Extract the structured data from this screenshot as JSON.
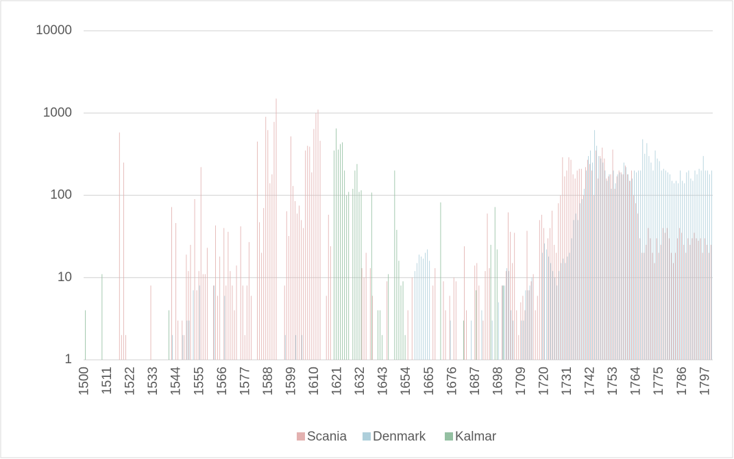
{
  "chart_data": {
    "type": "bar",
    "log_scale": true,
    "grid": true,
    "legend_position": "bottom",
    "categories": [
      "1500",
      null,
      null,
      null,
      null,
      null,
      null,
      null,
      null,
      null,
      null,
      "1511",
      null,
      null,
      null,
      null,
      null,
      null,
      null,
      null,
      null,
      null,
      "1522",
      null,
      null,
      null,
      null,
      null,
      null,
      null,
      null,
      null,
      null,
      "1533",
      null,
      null,
      null,
      null,
      null,
      null,
      null,
      null,
      null,
      null,
      "1544",
      null,
      null,
      null,
      null,
      null,
      null,
      null,
      null,
      null,
      null,
      "1555",
      null,
      null,
      null,
      null,
      null,
      null,
      null,
      null,
      null,
      null,
      "1566",
      null,
      null,
      null,
      null,
      null,
      null,
      null,
      null,
      null,
      null,
      "1577",
      null,
      null,
      null,
      null,
      null,
      null,
      null,
      null,
      null,
      null,
      "1588",
      null,
      null,
      null,
      null,
      null,
      null,
      null,
      null,
      null,
      null,
      "1599",
      null,
      null,
      null,
      null,
      null,
      null,
      null,
      null,
      null,
      null,
      "1610",
      null,
      null,
      null,
      null,
      null,
      null,
      null,
      null,
      null,
      null,
      "1621",
      null,
      null,
      null,
      null,
      null,
      null,
      null,
      null,
      null,
      null,
      "1632",
      null,
      null,
      null,
      null,
      null,
      null,
      null,
      null,
      null,
      null,
      "1643",
      null,
      null,
      null,
      null,
      null,
      null,
      null,
      null,
      null,
      null,
      "1654",
      null,
      null,
      null,
      null,
      null,
      null,
      null,
      null,
      null,
      null,
      "1665",
      null,
      null,
      null,
      null,
      null,
      null,
      null,
      null,
      null,
      null,
      "1676",
      null,
      null,
      null,
      null,
      null,
      null,
      null,
      null,
      null,
      null,
      "1687",
      null,
      null,
      null,
      null,
      null,
      null,
      null,
      null,
      null,
      null,
      "1698",
      null,
      null,
      null,
      null,
      null,
      null,
      null,
      null,
      null,
      null,
      "1709",
      null,
      null,
      null,
      null,
      null,
      null,
      null,
      null,
      null,
      null,
      "1720",
      null,
      null,
      null,
      null,
      null,
      null,
      null,
      null,
      null,
      null,
      "1731",
      null,
      null,
      null,
      null,
      null,
      null,
      null,
      null,
      null,
      null,
      "1742",
      null,
      null,
      null,
      null,
      null,
      null,
      null,
      null,
      null,
      null,
      "1753",
      null,
      null,
      null,
      null,
      null,
      null,
      null,
      null,
      null,
      null,
      "1764",
      null,
      null,
      null,
      null,
      null,
      null,
      null,
      null,
      null,
      null,
      "1775",
      null,
      null,
      null,
      null,
      null,
      null,
      null,
      null,
      null,
      null,
      "1786",
      null,
      null,
      null,
      null,
      null,
      null,
      null,
      null,
      null,
      null,
      "1797",
      null,
      null,
      null
    ],
    "ylim": [
      1,
      10000
    ],
    "yticks": [
      1,
      10,
      100,
      1000,
      10000
    ],
    "series": [
      {
        "name": "Scania",
        "color": "#e3b1b0",
        "values": [
          null,
          null,
          null,
          null,
          null,
          null,
          null,
          null,
          null,
          null,
          null,
          null,
          null,
          null,
          null,
          null,
          null,
          580,
          2,
          250,
          2,
          null,
          null,
          null,
          null,
          null,
          null,
          null,
          null,
          null,
          null,
          null,
          8,
          null,
          null,
          null,
          null,
          null,
          null,
          null,
          null,
          null,
          72,
          null,
          46,
          3,
          null,
          3,
          2,
          19,
          12,
          25,
          null,
          90,
          7,
          12,
          220,
          11,
          11,
          23,
          null,
          null,
          8,
          43,
          6,
          18,
          null,
          40,
          8,
          36,
          12,
          8,
          4,
          14,
          null,
          42,
          8,
          2,
          8,
          27,
          6,
          null,
          null,
          450,
          47,
          20,
          70,
          900,
          620,
          140,
          180,
          780,
          1500,
          null,
          null,
          null,
          8,
          64,
          32,
          520,
          130,
          85,
          60,
          75,
          50,
          40,
          350,
          400,
          390,
          190,
          640,
          1000,
          1100,
          460,
          null,
          null,
          6,
          58,
          24,
          null,
          null,
          null,
          null,
          null,
          null,
          null,
          null,
          null,
          null,
          null,
          null,
          null,
          null,
          13,
          10,
          20,
          null,
          13,
          6,
          null,
          null,
          null,
          null,
          null,
          null,
          9,
          null,
          null,
          null,
          null,
          null,
          null,
          null,
          null,
          null,
          4,
          null,
          10,
          null,
          null,
          null,
          null,
          null,
          null,
          null,
          null,
          null,
          8,
          13,
          null,
          null,
          null,
          9,
          4,
          null,
          6,
          null,
          10,
          9,
          null,
          null,
          null,
          24,
          4,
          null,
          null,
          null,
          14,
          15,
          8,
          null,
          3,
          12,
          60,
          13,
          null,
          null,
          null,
          null,
          null,
          8,
          null,
          12,
          62,
          36,
          15,
          35,
          4,
          2,
          5,
          6,
          4,
          37,
          7,
          9,
          11,
          4,
          6,
          50,
          58,
          40,
          null,
          30,
          40,
          65,
          25,
          20,
          80,
          100,
          290,
          170,
          200,
          290,
          270,
          180,
          160,
          200,
          210,
          210,
          100,
          220,
          270,
          240,
          200,
          100,
          350,
          160,
          300,
          380,
          280,
          160,
          170,
          180,
          360,
          120,
          170,
          200,
          190,
          180,
          230,
          180,
          150,
          200,
          100,
          80,
          60,
          30,
          20,
          20,
          25,
          40,
          30,
          20,
          15,
          30,
          20,
          25,
          40,
          35,
          40,
          30,
          20,
          15,
          20,
          30,
          40,
          35,
          25,
          20,
          30,
          25,
          30,
          35,
          30,
          28,
          30,
          20,
          30,
          25,
          20,
          25
        ]
      },
      {
        "name": "Denmark",
        "color": "#aecfdb",
        "values": [
          null,
          null,
          null,
          null,
          null,
          null,
          null,
          null,
          null,
          null,
          null,
          null,
          null,
          null,
          null,
          null,
          null,
          null,
          null,
          null,
          null,
          null,
          null,
          null,
          null,
          null,
          null,
          null,
          null,
          null,
          null,
          null,
          null,
          null,
          null,
          null,
          null,
          null,
          null,
          null,
          null,
          null,
          2,
          null,
          null,
          null,
          null,
          2,
          null,
          3,
          3,
          null,
          7,
          null,
          null,
          8,
          null,
          null,
          null,
          null,
          null,
          null,
          8,
          null,
          null,
          null,
          null,
          6,
          null,
          null,
          null,
          null,
          null,
          null,
          null,
          null,
          null,
          null,
          null,
          null,
          null,
          null,
          null,
          null,
          null,
          null,
          null,
          null,
          null,
          null,
          null,
          null,
          null,
          null,
          null,
          null,
          2,
          null,
          null,
          null,
          null,
          2,
          null,
          null,
          2,
          null,
          null,
          null,
          null,
          null,
          null,
          null,
          null,
          null,
          null,
          null,
          null,
          null,
          null,
          null,
          null,
          null,
          null,
          null,
          null,
          null,
          null,
          null,
          null,
          null,
          null,
          null,
          null,
          null,
          null,
          null,
          null,
          null,
          null,
          null,
          null,
          null,
          null,
          null,
          null,
          null,
          null,
          null,
          null,
          null,
          null,
          null,
          null,
          null,
          null,
          null,
          null,
          null,
          12,
          15,
          19,
          18,
          17,
          20,
          22,
          16,
          null,
          null,
          null,
          null,
          null,
          null,
          null,
          null,
          null,
          3,
          null,
          null,
          null,
          null,
          null,
          null,
          null,
          null,
          null,
          3,
          null,
          null,
          null,
          null,
          4,
          null,
          null,
          null,
          null,
          3,
          null,
          null,
          5,
          null,
          8,
          8,
          13,
          12,
          4,
          3,
          null,
          null,
          null,
          3,
          3,
          7,
          7,
          8,
          10,
          null,
          null,
          null,
          null,
          20,
          26,
          22,
          18,
          15,
          12,
          10,
          8,
          12,
          15,
          17,
          15,
          18,
          20,
          30,
          50,
          60,
          50,
          80,
          90,
          120,
          200,
          300,
          350,
          250,
          620,
          400,
          300,
          280,
          250,
          200,
          150,
          180,
          120,
          200,
          140,
          180,
          190,
          180,
          250,
          220,
          180,
          150,
          160,
          200,
          190,
          200,
          200,
          480,
          320,
          430,
          300,
          250,
          200,
          350,
          280,
          260,
          200,
          210,
          200,
          190,
          180,
          150,
          140,
          150,
          140,
          200,
          150,
          140,
          190,
          200,
          160,
          150,
          200,
          180,
          210,
          200,
          300,
          200,
          200,
          180,
          200
        ]
      },
      {
        "name": "Kalmar",
        "color": "#94c0a2",
        "values": [
          4,
          null,
          null,
          null,
          null,
          null,
          null,
          null,
          11,
          null,
          null,
          null,
          null,
          null,
          null,
          null,
          null,
          null,
          null,
          null,
          null,
          null,
          null,
          null,
          null,
          null,
          null,
          null,
          null,
          null,
          null,
          null,
          null,
          null,
          null,
          null,
          null,
          null,
          null,
          null,
          4,
          null,
          null,
          null,
          null,
          null,
          null,
          null,
          null,
          null,
          null,
          null,
          null,
          null,
          null,
          null,
          null,
          null,
          null,
          null,
          null,
          null,
          null,
          null,
          null,
          null,
          null,
          null,
          null,
          null,
          null,
          null,
          null,
          null,
          null,
          null,
          null,
          null,
          null,
          null,
          null,
          null,
          null,
          null,
          null,
          null,
          null,
          null,
          null,
          null,
          null,
          null,
          null,
          null,
          null,
          null,
          null,
          null,
          null,
          null,
          null,
          null,
          null,
          null,
          null,
          null,
          null,
          null,
          null,
          null,
          null,
          null,
          null,
          null,
          null,
          null,
          null,
          null,
          null,
          350,
          650,
          360,
          420,
          440,
          200,
          100,
          110,
          null,
          120,
          200,
          240,
          110,
          115,
          null,
          null,
          null,
          null,
          108,
          null,
          null,
          4,
          4,
          2,
          null,
          null,
          11,
          null,
          null,
          200,
          38,
          16,
          8,
          9,
          2,
          null,
          null,
          null,
          null,
          null,
          null,
          null,
          null,
          null,
          null,
          null,
          null,
          null,
          null,
          null,
          null,
          82,
          null,
          null,
          null,
          null,
          null,
          null,
          null,
          null,
          null,
          null,
          3,
          null,
          null,
          null,
          null,
          null,
          7,
          null,
          null,
          null,
          null,
          null,
          null,
          25,
          null,
          72,
          22,
          null,
          null,
          8,
          null,
          null,
          null,
          null,
          null,
          null,
          null,
          null,
          null,
          null,
          null,
          null,
          null,
          null,
          null,
          null,
          null,
          null,
          null,
          null,
          null,
          null,
          null,
          null,
          null,
          null,
          null,
          null,
          null,
          null,
          null,
          null,
          null,
          null,
          null,
          null,
          null,
          null,
          null,
          null,
          null,
          null,
          null,
          null,
          null,
          null,
          null,
          null,
          null,
          null,
          null,
          null,
          null,
          null,
          null,
          null,
          null,
          null,
          null,
          null,
          null,
          null,
          null,
          null,
          null,
          null,
          null,
          null,
          null,
          null,
          null,
          null,
          null,
          null,
          null,
          null,
          null,
          null,
          null,
          null,
          null,
          null,
          null,
          null,
          null,
          null,
          null,
          null,
          null,
          null,
          null,
          null,
          null,
          null,
          null,
          null,
          null,
          null,
          null,
          null
        ]
      }
    ]
  }
}
